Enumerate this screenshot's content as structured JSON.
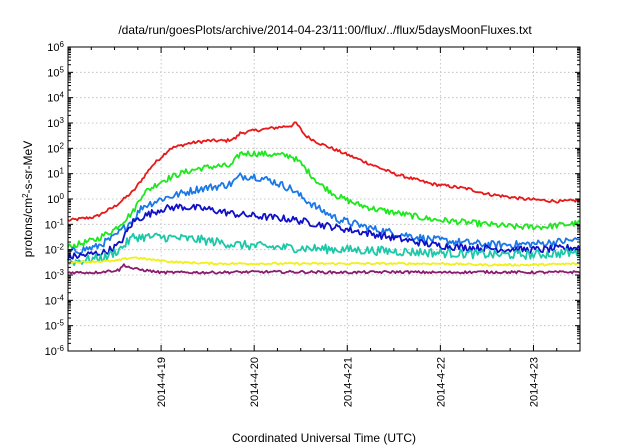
{
  "chart_data": {
    "type": "line",
    "title": "/data/run/goesPlots/archive/2014-04-23/11:00/flux/../flux/5daysMoonFluxes.txt",
    "xlabel": "Coordinated Universal Time (UTC)",
    "ylabel_main": "protons/cm",
    "ylabel_sup": "2",
    "ylabel_rest": "-s-sr-MeV",
    "x_unit": "days since start of plotted window",
    "xlim": [
      0,
      5.5
    ],
    "ylim_log10": [
      -6,
      6
    ],
    "y_scale": "log",
    "grid": true,
    "x_ticks": [
      {
        "x": 1,
        "label": "2014-4-19"
      },
      {
        "x": 2,
        "label": "2014-4-20"
      },
      {
        "x": 3,
        "label": "2014-4-21"
      },
      {
        "x": 4,
        "label": "2014-4-22"
      },
      {
        "x": 5,
        "label": "2014-4-23"
      }
    ],
    "y_ticks": [
      {
        "exp": -6
      },
      {
        "exp": -5
      },
      {
        "exp": -4
      },
      {
        "exp": -3
      },
      {
        "exp": -2
      },
      {
        "exp": -1
      },
      {
        "exp": 0
      },
      {
        "exp": 1
      },
      {
        "exp": 2
      },
      {
        "exp": 3
      },
      {
        "exp": 4
      },
      {
        "exp": 5
      },
      {
        "exp": 6
      }
    ],
    "series": [
      {
        "color": "#e8191a",
        "noise": 0.06,
        "points": [
          [
            0,
            -0.85
          ],
          [
            0.3,
            -0.7
          ],
          [
            0.5,
            -0.3
          ],
          [
            0.7,
            0.3
          ],
          [
            0.9,
            1.3
          ],
          [
            1.1,
            2.0
          ],
          [
            1.3,
            2.2
          ],
          [
            1.5,
            2.3
          ],
          [
            1.7,
            2.3
          ],
          [
            1.8,
            2.4
          ],
          [
            1.85,
            2.6
          ],
          [
            2.0,
            2.7
          ],
          [
            2.2,
            2.8
          ],
          [
            2.4,
            2.9
          ],
          [
            2.45,
            3.0
          ],
          [
            2.55,
            2.5
          ],
          [
            2.7,
            2.2
          ],
          [
            2.9,
            1.9
          ],
          [
            3.1,
            1.6
          ],
          [
            3.3,
            1.3
          ],
          [
            3.5,
            1.0
          ],
          [
            3.7,
            0.8
          ],
          [
            3.9,
            0.6
          ],
          [
            4.1,
            0.5
          ],
          [
            4.3,
            0.4
          ],
          [
            4.5,
            0.2
          ],
          [
            4.7,
            0.1
          ],
          [
            4.9,
            0.0
          ],
          [
            5.1,
            -0.05
          ],
          [
            5.3,
            -0.1
          ],
          [
            5.5,
            -0.05
          ]
        ]
      },
      {
        "color": "#1de81d",
        "noise": 0.12,
        "points": [
          [
            0,
            -1.9
          ],
          [
            0.3,
            -1.6
          ],
          [
            0.5,
            -1.2
          ],
          [
            0.7,
            -0.5
          ],
          [
            0.8,
            0.2
          ],
          [
            1.0,
            0.7
          ],
          [
            1.2,
            1.0
          ],
          [
            1.4,
            1.2
          ],
          [
            1.6,
            1.3
          ],
          [
            1.75,
            1.3
          ],
          [
            1.85,
            1.8
          ],
          [
            2.0,
            1.8
          ],
          [
            2.2,
            1.75
          ],
          [
            2.4,
            1.7
          ],
          [
            2.5,
            1.4
          ],
          [
            2.7,
            0.6
          ],
          [
            2.9,
            0.1
          ],
          [
            3.1,
            -0.2
          ],
          [
            3.3,
            -0.4
          ],
          [
            3.6,
            -0.6
          ],
          [
            3.9,
            -0.8
          ],
          [
            4.2,
            -0.9
          ],
          [
            4.5,
            -1.0
          ],
          [
            4.8,
            -1.1
          ],
          [
            5.1,
            -1.1
          ],
          [
            5.5,
            -0.95
          ]
        ]
      },
      {
        "color": "#1a78e8",
        "noise": 0.15,
        "points": [
          [
            0,
            -2.1
          ],
          [
            0.3,
            -1.9
          ],
          [
            0.5,
            -1.5
          ],
          [
            0.7,
            -0.8
          ],
          [
            0.8,
            -0.3
          ],
          [
            1.0,
            0.0
          ],
          [
            1.2,
            0.2
          ],
          [
            1.4,
            0.4
          ],
          [
            1.6,
            0.5
          ],
          [
            1.75,
            0.6
          ],
          [
            1.85,
            0.9
          ],
          [
            2.0,
            0.9
          ],
          [
            2.2,
            0.7
          ],
          [
            2.4,
            0.4
          ],
          [
            2.5,
            0.1
          ],
          [
            2.7,
            -0.4
          ],
          [
            2.9,
            -0.8
          ],
          [
            3.1,
            -1.0
          ],
          [
            3.3,
            -1.2
          ],
          [
            3.6,
            -1.4
          ],
          [
            3.9,
            -1.6
          ],
          [
            4.2,
            -1.7
          ],
          [
            4.5,
            -1.8
          ],
          [
            4.8,
            -1.8
          ],
          [
            5.1,
            -1.75
          ],
          [
            5.5,
            -1.6
          ]
        ]
      },
      {
        "color": "#1010c8",
        "noise": 0.14,
        "points": [
          [
            0,
            -2.3
          ],
          [
            0.4,
            -2.1
          ],
          [
            0.55,
            -1.8
          ],
          [
            0.7,
            -0.9
          ],
          [
            0.8,
            -0.7
          ],
          [
            1.0,
            -0.4
          ],
          [
            1.2,
            -0.3
          ],
          [
            1.5,
            -0.4
          ],
          [
            1.8,
            -0.6
          ],
          [
            2.1,
            -0.7
          ],
          [
            2.4,
            -0.8
          ],
          [
            2.7,
            -1.0
          ],
          [
            3.0,
            -1.2
          ],
          [
            3.3,
            -1.4
          ],
          [
            3.6,
            -1.6
          ],
          [
            3.9,
            -1.8
          ],
          [
            4.2,
            -1.9
          ],
          [
            4.5,
            -1.95
          ],
          [
            4.8,
            -2.0
          ],
          [
            5.1,
            -2.0
          ],
          [
            5.5,
            -1.9
          ]
        ]
      },
      {
        "color": "#1dc8a8",
        "noise": 0.18,
        "points": [
          [
            0,
            -2.5
          ],
          [
            0.4,
            -2.3
          ],
          [
            0.55,
            -2.0
          ],
          [
            0.7,
            -1.5
          ],
          [
            1.0,
            -1.5
          ],
          [
            1.4,
            -1.6
          ],
          [
            1.8,
            -1.8
          ],
          [
            2.2,
            -1.9
          ],
          [
            2.6,
            -1.95
          ],
          [
            3.0,
            -2.0
          ],
          [
            3.4,
            -2.05
          ],
          [
            3.8,
            -2.1
          ],
          [
            4.2,
            -2.15
          ],
          [
            4.6,
            -2.2
          ],
          [
            5.0,
            -2.2
          ],
          [
            5.5,
            -2.1
          ]
        ]
      },
      {
        "color": "#f0f01a",
        "noise": 0.04,
        "points": [
          [
            0,
            -2.5
          ],
          [
            0.5,
            -2.45
          ],
          [
            0.7,
            -2.3
          ],
          [
            0.9,
            -2.4
          ],
          [
            1.2,
            -2.5
          ],
          [
            1.6,
            -2.55
          ],
          [
            2.0,
            -2.55
          ],
          [
            2.5,
            -2.55
          ],
          [
            3.0,
            -2.55
          ],
          [
            3.5,
            -2.55
          ],
          [
            4.0,
            -2.55
          ],
          [
            4.5,
            -2.6
          ],
          [
            5.0,
            -2.6
          ],
          [
            5.5,
            -2.55
          ]
        ]
      },
      {
        "color": "#8c1a6e",
        "noise": 0.05,
        "points": [
          [
            0,
            -2.9
          ],
          [
            0.3,
            -2.9
          ],
          [
            0.55,
            -2.8
          ],
          [
            0.6,
            -2.6
          ],
          [
            0.7,
            -2.75
          ],
          [
            1.0,
            -2.9
          ],
          [
            1.5,
            -2.9
          ],
          [
            2.0,
            -2.88
          ],
          [
            2.5,
            -2.88
          ],
          [
            3.0,
            -2.9
          ],
          [
            3.5,
            -2.88
          ],
          [
            4.0,
            -2.9
          ],
          [
            4.5,
            -2.88
          ],
          [
            5.0,
            -2.9
          ],
          [
            5.5,
            -2.88
          ]
        ]
      }
    ]
  }
}
